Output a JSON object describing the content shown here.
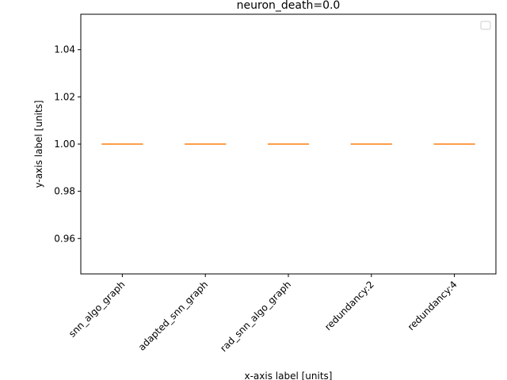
{
  "chart_data": {
    "type": "box",
    "title": "neuron_death=0.0",
    "xlabel": "x-axis label [units]",
    "ylabel": "y-axis label [units]",
    "categories": [
      "snn_algo_graph",
      "adapted_snn_graph",
      "rad_snn_algo_graph",
      "redundancy:2",
      "redundancy:4"
    ],
    "values": [
      1.0,
      1.0,
      1.0,
      1.0,
      1.0
    ],
    "ylim": [
      0.945,
      1.055
    ],
    "yticks": [
      0.96,
      0.98,
      1.0,
      1.02,
      1.04
    ],
    "ytick_labels": [
      "0.96",
      "0.98",
      "1.00",
      "1.02",
      "1.04"
    ],
    "legend": {
      "placement": "upper right",
      "entries": []
    },
    "grid": false,
    "colors": {
      "median": "#ff7f0e",
      "box": "#000000"
    }
  }
}
